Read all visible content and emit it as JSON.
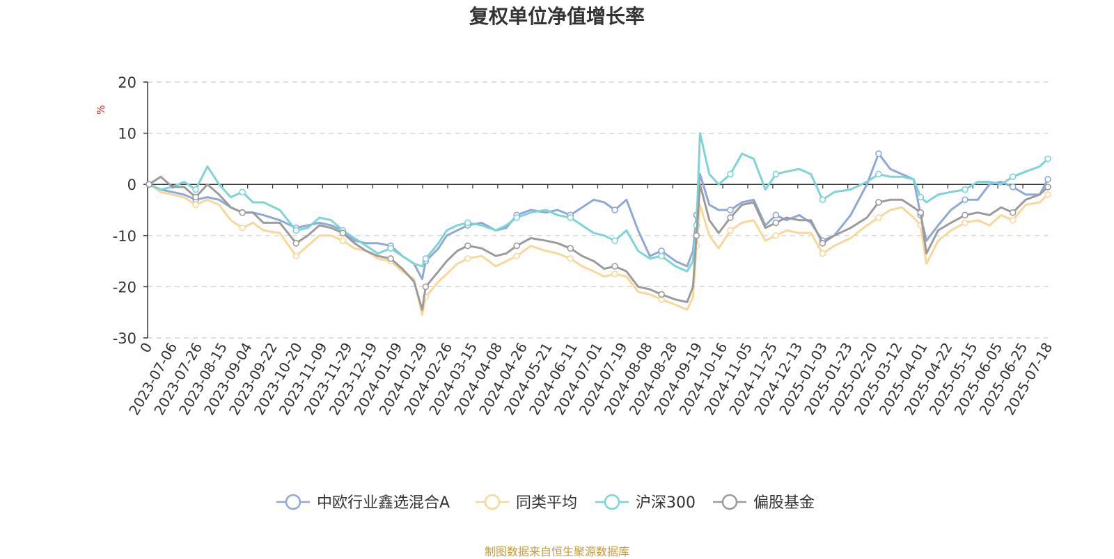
{
  "chart_data": {
    "type": "line",
    "title": "复权单位净值增长率",
    "ylabel": "%",
    "xlabel": "",
    "ylim": [
      -30,
      20
    ],
    "yticks": [
      -30,
      -20,
      -10,
      0,
      10,
      20
    ],
    "grid": true,
    "legend_position": "bottom",
    "x_ticks": [
      "0",
      "2023-07-06",
      "2023-07-26",
      "2023-08-15",
      "2023-09-04",
      "2023-09-22",
      "2023-10-20",
      "2023-11-09",
      "2023-11-29",
      "2023-12-19",
      "2024-01-09",
      "2024-01-29",
      "2024-02-26",
      "2024-03-15",
      "2024-04-08",
      "2024-04-26",
      "2024-05-21",
      "2024-06-11",
      "2024-07-01",
      "2024-07-19",
      "2024-08-08",
      "2024-08-28",
      "2024-09-19",
      "2024-10-16",
      "2024-11-05",
      "2024-11-25",
      "2024-12-13",
      "2025-01-03",
      "2025-01-23",
      "2025-02-20",
      "2025-03-12",
      "2025-04-01",
      "2025-04-22",
      "2025-05-15",
      "2025-06-05",
      "2025-06-25",
      "2025-07-18"
    ],
    "x": [
      "2023-06-16",
      "2023-06-26",
      "2023-07-06",
      "2023-07-16",
      "2023-07-26",
      "2023-08-05",
      "2023-08-15",
      "2023-08-25",
      "2023-09-04",
      "2023-09-13",
      "2023-09-22",
      "2023-10-06",
      "2023-10-20",
      "2023-10-30",
      "2023-11-09",
      "2023-11-19",
      "2023-11-29",
      "2023-12-09",
      "2023-12-19",
      "2023-12-29",
      "2024-01-09",
      "2024-01-19",
      "2024-01-29",
      "2024-02-05",
      "2024-02-08",
      "2024-02-19",
      "2024-02-26",
      "2024-03-06",
      "2024-03-15",
      "2024-03-27",
      "2024-04-08",
      "2024-04-17",
      "2024-04-26",
      "2024-05-08",
      "2024-05-21",
      "2024-05-31",
      "2024-06-11",
      "2024-06-21",
      "2024-07-01",
      "2024-07-10",
      "2024-07-19",
      "2024-07-29",
      "2024-08-08",
      "2024-08-18",
      "2024-08-28",
      "2024-09-09",
      "2024-09-19",
      "2024-09-24",
      "2024-09-27",
      "2024-09-30",
      "2024-10-08",
      "2024-10-16",
      "2024-10-26",
      "2024-11-05",
      "2024-11-15",
      "2024-11-25",
      "2024-12-04",
      "2024-12-13",
      "2024-12-24",
      "2025-01-03",
      "2025-01-13",
      "2025-01-23",
      "2025-02-06",
      "2025-02-20",
      "2025-03-02",
      "2025-03-12",
      "2025-03-22",
      "2025-04-01",
      "2025-04-07",
      "2025-04-12",
      "2025-04-22",
      "2025-05-03",
      "2025-05-15",
      "2025-05-26",
      "2025-06-05",
      "2025-06-15",
      "2025-06-25",
      "2025-07-06",
      "2025-07-18",
      "2025-07-25"
    ],
    "series": [
      {
        "name": "中欧行业鑫选混合A",
        "color": "#8ea8d8",
        "values": [
          0,
          -1.0,
          -1.5,
          -2.0,
          -3.0,
          -2.5,
          -3.0,
          -4.5,
          -5.5,
          -5.5,
          -6.0,
          -7.0,
          -8.5,
          -8.0,
          -7.5,
          -8.0,
          -9.0,
          -11.0,
          -11.5,
          -11.5,
          -12.0,
          -14.0,
          -15.5,
          -18.5,
          -15.0,
          -12.5,
          -10.0,
          -9.0,
          -8.0,
          -7.5,
          -9.0,
          -8.5,
          -6.0,
          -5.0,
          -5.5,
          -5.0,
          -6.0,
          -4.5,
          -3.0,
          -3.5,
          -5.0,
          -3.0,
          -9.0,
          -14.0,
          -13.0,
          -15.0,
          -16.0,
          -13.0,
          -6.0,
          2.0,
          -4.0,
          -5.0,
          -5.0,
          -3.5,
          -3.0,
          -8.0,
          -6.0,
          -7.0,
          -6.0,
          -7.5,
          -11.0,
          -10.0,
          -6.0,
          0.0,
          6.0,
          3.0,
          2.0,
          1.0,
          -6.0,
          -11.0,
          -8.0,
          -5.0,
          -3.0,
          -3.0,
          0.0,
          0.5,
          -0.5,
          -2.0,
          -2.0,
          1.0
        ]
      },
      {
        "name": "同类平均",
        "color": "#f9d79a",
        "values": [
          0,
          -1.5,
          -2.0,
          -2.5,
          -4.0,
          -3.0,
          -4.0,
          -7.0,
          -8.5,
          -7.5,
          -9.0,
          -9.5,
          -14.0,
          -12.0,
          -10.0,
          -10.0,
          -11.0,
          -12.5,
          -13.0,
          -14.5,
          -15.0,
          -17.0,
          -18.5,
          -25.5,
          -22.0,
          -19.0,
          -17.5,
          -15.5,
          -14.5,
          -14.0,
          -16.0,
          -15.0,
          -14.0,
          -12.0,
          -13.0,
          -13.5,
          -14.5,
          -16.0,
          -17.0,
          -18.0,
          -17.5,
          -18.0,
          -21.0,
          -21.5,
          -22.5,
          -23.5,
          -24.5,
          -22.0,
          -12.0,
          -4.0,
          -10.0,
          -12.5,
          -9.0,
          -7.5,
          -7.0,
          -11.0,
          -10.0,
          -9.0,
          -9.5,
          -9.5,
          -13.5,
          -12.0,
          -10.5,
          -8.0,
          -6.5,
          -5.0,
          -4.5,
          -6.5,
          -8.0,
          -15.5,
          -11.0,
          -9.0,
          -7.5,
          -7.0,
          -8.0,
          -6.0,
          -7.0,
          -4.0,
          -3.5,
          -2.0
        ]
      },
      {
        "name": "沪深300",
        "color": "#7ed3d6",
        "values": [
          0,
          -1.0,
          -0.5,
          0.5,
          -1.0,
          3.5,
          0.0,
          -2.5,
          -1.5,
          -3.5,
          -3.5,
          -5.0,
          -9.0,
          -8.5,
          -6.5,
          -7.0,
          -9.0,
          -10.5,
          -12.0,
          -13.5,
          -12.5,
          -14.0,
          -15.5,
          -16.0,
          -14.5,
          -11.5,
          -9.0,
          -8.0,
          -7.5,
          -8.0,
          -9.0,
          -8.0,
          -6.5,
          -5.5,
          -5.0,
          -6.0,
          -6.5,
          -8.0,
          -9.5,
          -10.0,
          -11.0,
          -9.0,
          -13.0,
          -14.5,
          -14.0,
          -16.0,
          -17.0,
          -15.0,
          -8.0,
          10.0,
          2.0,
          0.0,
          2.0,
          6.0,
          5.0,
          -1.0,
          2.0,
          2.5,
          3.0,
          2.0,
          -3.0,
          -1.5,
          -1.0,
          0.5,
          2.0,
          1.5,
          1.5,
          1.0,
          -2.5,
          -3.5,
          -2.0,
          -1.5,
          -1.0,
          0.5,
          0.5,
          0.0,
          1.5,
          2.5,
          3.5,
          5.0
        ]
      },
      {
        "name": "偏股基金",
        "color": "#9b9b9b",
        "values": [
          0,
          1.5,
          -0.5,
          -0.5,
          -2.5,
          0.0,
          -2.0,
          -4.5,
          -5.5,
          -5.5,
          -7.5,
          -7.5,
          -11.5,
          -10.0,
          -8.0,
          -8.5,
          -9.5,
          -11.5,
          -13.0,
          -14.0,
          -14.5,
          -16.5,
          -19.0,
          -24.5,
          -20.0,
          -17.0,
          -15.0,
          -13.0,
          -12.0,
          -12.5,
          -14.0,
          -13.5,
          -12.0,
          -10.5,
          -11.0,
          -11.5,
          -12.5,
          -14.0,
          -15.0,
          -16.5,
          -16.0,
          -17.0,
          -20.0,
          -20.5,
          -21.5,
          -22.5,
          -23.0,
          -20.0,
          -10.0,
          0.0,
          -7.0,
          -9.5,
          -6.5,
          -4.0,
          -3.5,
          -8.5,
          -7.5,
          -6.5,
          -7.0,
          -7.0,
          -11.5,
          -10.0,
          -8.5,
          -6.5,
          -3.5,
          -3.0,
          -3.0,
          -4.5,
          -5.5,
          -13.5,
          -9.0,
          -7.5,
          -6.0,
          -5.5,
          -6.0,
          -4.5,
          -5.5,
          -3.0,
          -2.0,
          -0.5
        ]
      }
    ],
    "source": "制图数据来自恒生聚源数据库"
  }
}
